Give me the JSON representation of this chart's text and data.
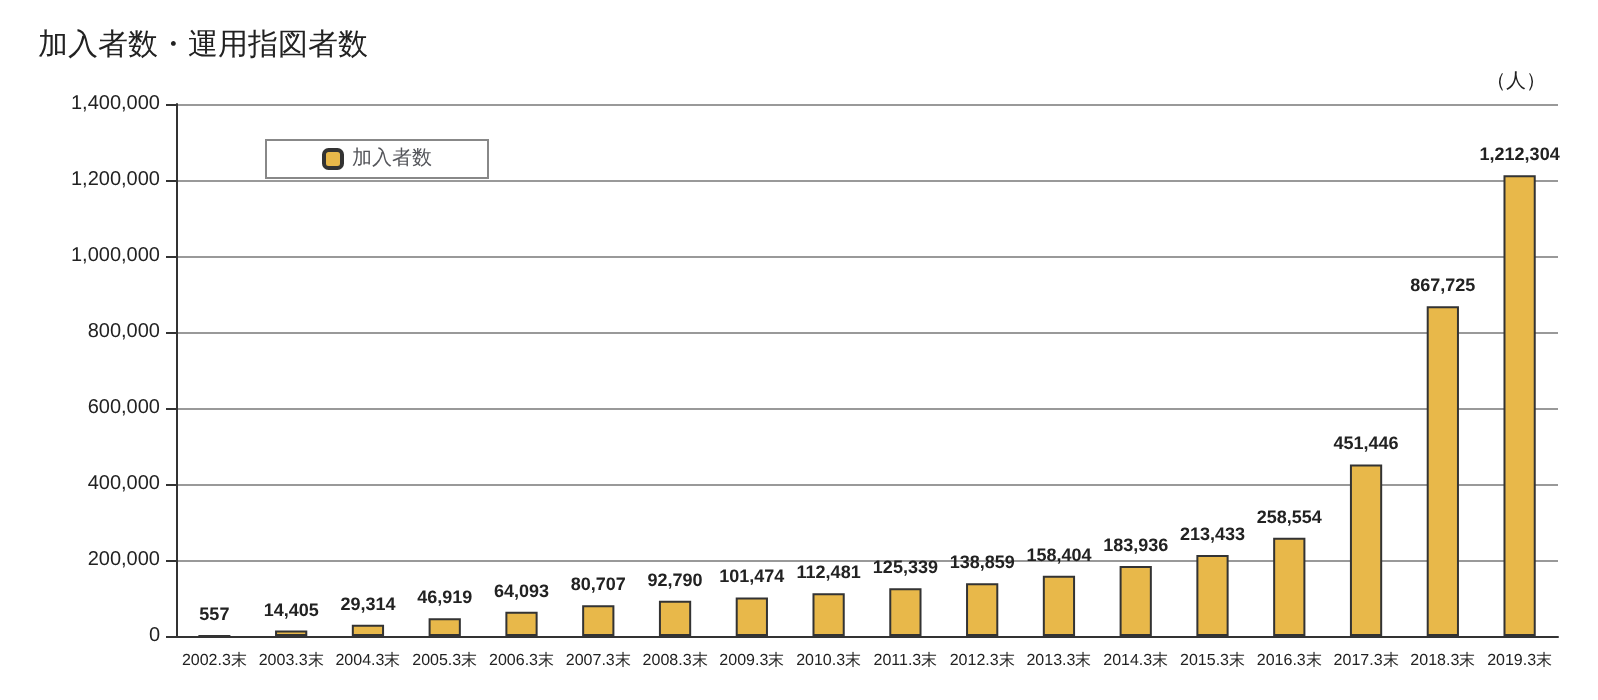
{
  "chart_data": {
    "type": "bar",
    "title": "加入者数・運用指図者数",
    "ylabel": "（人）",
    "categories": [
      "2002.3末",
      "2003.3末",
      "2004.3末",
      "2005.3末",
      "2006.3末",
      "2007.3末",
      "2008.3末",
      "2009.3末",
      "2010.3末",
      "2011.3末",
      "2012.3末",
      "2013.3末",
      "2014.3末",
      "2015.3末",
      "2016.3末",
      "2017.3末",
      "2018.3末",
      "2019.3末"
    ],
    "series": [
      {
        "name": "加入者数",
        "color": "#e8b84a",
        "values": [
          557,
          14405,
          29314,
          46919,
          64093,
          80707,
          92790,
          101474,
          112481,
          125339,
          138859,
          158404,
          183936,
          213433,
          258554,
          451446,
          867725,
          1212304
        ],
        "value_labels": [
          "557",
          "14,405",
          "29,314",
          "46,919",
          "64,093",
          "80,707",
          "92,790",
          "101,474",
          "112,481",
          "125,339",
          "138,859",
          "158,404",
          "183,936",
          "213,433",
          "258,554",
          "451,446",
          "867,725",
          "1,212,304"
        ]
      }
    ],
    "ylim": [
      0,
      1400000
    ],
    "yticks": [
      0,
      {
        "value": 200000,
        "label": "200,000"
      },
      {
        "value": 400000,
        "label": "400,000"
      },
      {
        "value": 600000,
        "label": "600,000"
      },
      {
        "value": 800000,
        "label": "800,000"
      },
      {
        "value": 1000000,
        "label": "1,000,000"
      },
      {
        "value": 1200000,
        "label": "1,200,000"
      },
      {
        "value": 1400000,
        "label": "1,400,000"
      }
    ],
    "grid": "y",
    "legend": "top left"
  }
}
